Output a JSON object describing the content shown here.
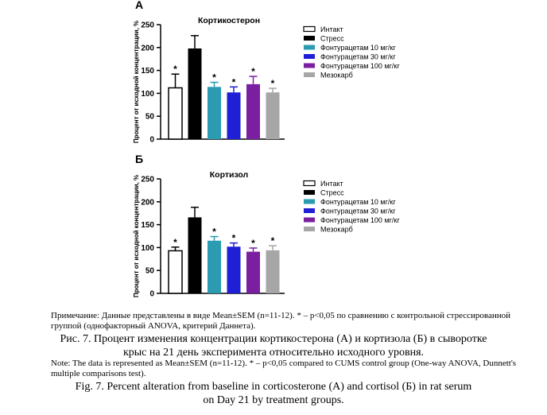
{
  "chart_data": [
    {
      "type": "bar",
      "panel_letter": "А",
      "title": "Кортикостерон",
      "ylabel": "Процент от исходной концентрации, %",
      "ylim": [
        0,
        250
      ],
      "yticks": [
        "0",
        "50",
        "100",
        "150",
        "200",
        "250"
      ],
      "legend_position": "right",
      "categories": [
        "Интакт",
        "Стресс",
        "Фонтурацетам 10 мг/кг",
        "Фонтурацетам 30 мг/кг",
        "Фонтурацетам 100 мг/кг",
        "Мезокарб"
      ],
      "values": [
        112,
        198,
        114,
        102,
        120,
        102
      ],
      "errors": [
        30,
        28,
        10,
        12,
        17,
        9
      ],
      "significant": [
        true,
        false,
        true,
        true,
        true,
        true
      ],
      "significance_mark": "*",
      "colors": [
        "#ffffff",
        "#000000",
        "#2a9bb0",
        "#1f1fd6",
        "#7a1fa0",
        "#a6a6a6"
      ]
    },
    {
      "type": "bar",
      "panel_letter": "Б",
      "title": "Кортизол",
      "ylabel": "Процент от исходной концентрации, %",
      "ylim": [
        0,
        250
      ],
      "yticks": [
        "0",
        "50",
        "100",
        "150",
        "200",
        "250"
      ],
      "legend_position": "right",
      "categories": [
        "Интакт",
        "Стресс",
        "Фонтурацетам 10 мг/кг",
        "Фонтурацетам 30 мг/кг",
        "Фонтурацетам 100 мг/кг",
        "Мезокарб"
      ],
      "values": [
        93,
        166,
        115,
        102,
        91,
        94
      ],
      "errors": [
        8,
        22,
        9,
        8,
        8,
        10
      ],
      "significant": [
        true,
        false,
        true,
        true,
        true,
        true
      ],
      "significance_mark": "*",
      "colors": [
        "#ffffff",
        "#000000",
        "#2a9bb0",
        "#1f1fd6",
        "#7a1fa0",
        "#a6a6a6"
      ]
    }
  ],
  "captions": {
    "note_ru": "Примечание: Данные представлены в виде Mean±SEM (n=11-12). * – p<0,05 по сравнению с контрольной стрессированной группой (однофакторный ANOVA, критерий Даннета).",
    "title_ru_line1": "Рис. 7. Процент изменения концентрации кортикостерона (А) и кортизола (Б) в сыворотке",
    "title_ru_line2": "крыс на 21 день эксперимента относительно исходного уровня.",
    "note_en": "Note: The data is represented as Mean±SEM (n=11-12). * – p<0,05 compared to CUMS control group (One-way ANOVA, Dunnett's multiple comparisons test).",
    "title_en_line1": "Fig. 7. Percent alteration from baseline in corticosterone (A) and cortisol (Б) in rat serum",
    "title_en_line2": "on Day 21 by treatment groups."
  }
}
